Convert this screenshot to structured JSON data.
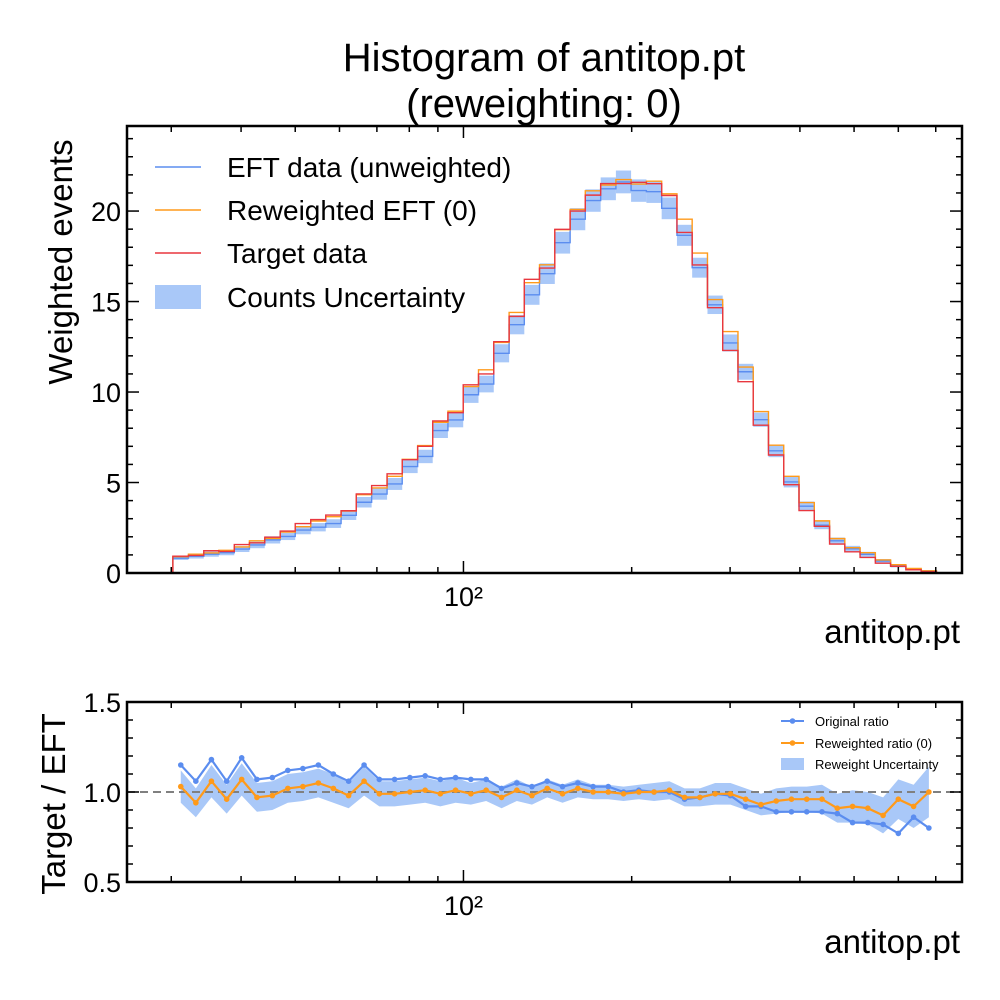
{
  "chart_data": [
    {
      "type": "line",
      "panel": "main",
      "title": "Histogram of antitop.pt",
      "subtitle": "(reweighting: 0)",
      "xlabel": "antitop.pt",
      "ylabel": "Weighted events",
      "xscale": "log",
      "xlim": [
        25,
        780
      ],
      "ylim": [
        0,
        24.7
      ],
      "xticks": [
        {
          "value": 100,
          "label": "10²"
        }
      ],
      "yticks": [
        0,
        5,
        10,
        15,
        20
      ],
      "legend_position": "upper-left",
      "bin_edges": [
        30.2,
        32.2,
        34.3,
        36.5,
        38.9,
        41.4,
        44.1,
        47.0,
        50.0,
        53.3,
        56.7,
        60.4,
        64.3,
        68.5,
        73.0,
        77.7,
        82.8,
        88.1,
        93.8,
        99.9,
        106.4,
        113.3,
        120.7,
        128.5,
        136.8,
        145.7,
        155.2,
        165.2,
        176.0,
        187.4,
        199.5,
        212.5,
        226.3,
        241.0,
        256.6,
        273.3,
        291.0,
        309.9,
        330.0,
        351.4,
        374.2,
        398.5,
        424.4,
        452.0,
        481.3,
        512.5,
        545.8,
        581.2,
        619.0,
        659.2,
        702.0
      ],
      "series": [
        {
          "name": "EFT data (unweighted)",
          "color": "#5b8def",
          "values": [
            0.82,
            0.92,
            1.04,
            1.12,
            1.32,
            1.55,
            1.83,
            2.02,
            2.37,
            2.53,
            2.73,
            3.19,
            3.91,
            4.36,
            4.92,
            5.88,
            6.44,
            7.87,
            8.46,
            9.85,
            10.44,
            12.14,
            13.72,
            15.37,
            16.54,
            18.25,
            19.55,
            20.58,
            21.23,
            21.61,
            21.13,
            21.07,
            20.15,
            18.66,
            16.87,
            14.82,
            12.71,
            11.12,
            8.47,
            6.75,
            5.03,
            3.69,
            2.64,
            1.78,
            1.34,
            1.03,
            0.66,
            0.4,
            0.21,
            0.11
          ]
        },
        {
          "name": "Reweighted EFT (0)",
          "color": "#ff9a1a",
          "values": [
            0.9,
            1.04,
            1.11,
            1.25,
            1.44,
            1.78,
            1.91,
            2.26,
            2.56,
            2.87,
            3.11,
            3.42,
            4.33,
            4.7,
            5.34,
            6.28,
            7.04,
            8.33,
            8.94,
            10.3,
            11.23,
            12.74,
            14.4,
            16.04,
            17.03,
            18.97,
            20.09,
            21.12,
            21.44,
            21.74,
            21.49,
            21.65,
            20.95,
            19.55,
            17.68,
            15.11,
            13.34,
            11.38,
            8.92,
            7.06,
            5.34,
            3.89,
            2.88,
            1.9,
            1.4,
            1.12,
            0.72,
            0.46,
            0.25,
            0.12
          ]
        },
        {
          "name": "Target data",
          "color": "#e8373f",
          "values": [
            0.93,
            0.97,
            1.23,
            1.19,
            1.57,
            1.67,
            1.98,
            2.32,
            2.73,
            2.95,
            3.2,
            3.44,
            4.37,
            4.83,
            5.48,
            6.26,
            7.0,
            8.4,
            8.86,
            10.4,
            11.0,
            12.78,
            14.18,
            16.23,
            16.85,
            18.99,
            20.0,
            20.88,
            21.52,
            21.52,
            21.59,
            21.51,
            20.86,
            18.82,
            17.02,
            14.66,
            12.3,
            10.57,
            8.17,
            6.52,
            4.88,
            3.45,
            2.58,
            1.6,
            1.17,
            0.86,
            0.54,
            0.37,
            0.18,
            0.08
          ]
        },
        {
          "name": "Counts Uncertainty",
          "color": "#a9c8f8",
          "type": "band",
          "lower": [
            0.72,
            0.8,
            0.9,
            0.98,
            1.16,
            1.37,
            1.63,
            1.82,
            2.14,
            2.3,
            2.49,
            2.93,
            3.62,
            4.05,
            4.59,
            5.52,
            6.07,
            7.46,
            8.05,
            9.4,
            9.98,
            11.64,
            13.19,
            14.82,
            15.97,
            17.65,
            18.94,
            19.96,
            20.6,
            20.98,
            20.51,
            20.45,
            19.55,
            18.08,
            16.32,
            14.31,
            12.24,
            10.68,
            8.08,
            6.4,
            4.73,
            3.43,
            2.42,
            1.6,
            1.18,
            0.89,
            0.55,
            0.31,
            0.15,
            0.06
          ],
          "upper": [
            0.92,
            1.04,
            1.18,
            1.26,
            1.48,
            1.73,
            2.03,
            2.22,
            2.6,
            2.76,
            2.97,
            3.45,
            4.2,
            4.67,
            5.25,
            6.24,
            6.81,
            8.28,
            8.87,
            10.3,
            10.9,
            12.64,
            14.25,
            15.92,
            17.11,
            18.85,
            20.16,
            21.2,
            21.86,
            22.24,
            21.75,
            21.69,
            20.75,
            19.24,
            17.42,
            15.33,
            13.18,
            11.56,
            8.86,
            7.1,
            5.33,
            3.95,
            2.86,
            1.96,
            1.5,
            1.17,
            0.77,
            0.49,
            0.27,
            0.16
          ]
        }
      ]
    },
    {
      "type": "line",
      "panel": "ratio",
      "xlabel": "antitop.pt",
      "ylabel": "Target / EFT",
      "xscale": "log",
      "xlim": [
        25,
        780
      ],
      "ylim": [
        0.5,
        1.5
      ],
      "xticks": [
        {
          "value": 100,
          "label": "10²"
        }
      ],
      "yticks": [
        {
          "value": 0.5,
          "label": "0.5"
        },
        {
          "value": 1.0,
          "label": "1.0"
        },
        {
          "value": 1.5,
          "label": "1.5"
        }
      ],
      "reference_line": 1.0,
      "legend_position": "upper-right",
      "x": [
        31.2,
        33.2,
        35.4,
        37.7,
        40.1,
        42.7,
        45.5,
        48.5,
        51.6,
        55.0,
        58.5,
        62.3,
        66.4,
        70.7,
        75.3,
        80.2,
        85.4,
        90.9,
        96.8,
        103.1,
        109.8,
        117.0,
        124.6,
        132.6,
        141.2,
        150.4,
        160.2,
        170.6,
        181.6,
        193.4,
        206.0,
        219.3,
        233.6,
        248.7,
        264.9,
        282.1,
        300.4,
        319.9,
        340.7,
        362.8,
        386.3,
        411.4,
        438.1,
        466.6,
        496.9,
        529.1,
        563.5,
        600.0,
        639.0,
        680.5
      ],
      "series": [
        {
          "name": "Original ratio",
          "color": "#5b8def",
          "values": [
            1.15,
            1.06,
            1.18,
            1.06,
            1.19,
            1.07,
            1.08,
            1.12,
            1.13,
            1.15,
            1.1,
            1.06,
            1.15,
            1.07,
            1.07,
            1.08,
            1.09,
            1.07,
            1.08,
            1.07,
            1.07,
            1.02,
            1.05,
            1.03,
            1.06,
            1.03,
            1.05,
            1.03,
            1.03,
            1.0,
            1.01,
            1.0,
            1.0,
            0.96,
            0.97,
            0.99,
            0.98,
            0.92,
            0.92,
            0.89,
            0.89,
            0.89,
            0.89,
            0.88,
            0.83,
            0.83,
            0.82,
            0.77,
            0.86,
            0.8
          ]
        },
        {
          "name": "Reweighted ratio (0)",
          "color": "#ff9a1a",
          "values": [
            1.03,
            0.94,
            1.06,
            0.96,
            1.07,
            0.97,
            0.98,
            1.02,
            1.03,
            1.05,
            1.02,
            0.98,
            1.06,
            0.99,
            0.99,
            1.0,
            1.01,
            0.99,
            1.01,
            0.99,
            1.01,
            0.97,
            1.01,
            0.98,
            1.02,
            0.99,
            1.02,
            1.0,
            1.0,
            0.99,
            1.0,
            1.0,
            1.01,
            0.97,
            0.97,
            0.99,
            0.99,
            0.96,
            0.93,
            0.95,
            0.96,
            0.96,
            0.96,
            0.91,
            0.92,
            0.91,
            0.87,
            0.96,
            0.92,
            1.0
          ]
        },
        {
          "name": "Reweight Uncertainty",
          "color": "#a9c8f8",
          "type": "band",
          "lower": [
            0.94,
            0.86,
            0.97,
            0.88,
            0.98,
            0.89,
            0.9,
            0.94,
            0.95,
            0.97,
            0.94,
            0.91,
            0.98,
            0.92,
            0.92,
            0.93,
            0.94,
            0.92,
            0.94,
            0.93,
            0.95,
            0.91,
            0.95,
            0.93,
            0.97,
            0.94,
            0.97,
            0.96,
            0.96,
            0.95,
            0.96,
            0.95,
            0.96,
            0.92,
            0.92,
            0.93,
            0.93,
            0.9,
            0.87,
            0.88,
            0.89,
            0.89,
            0.88,
            0.83,
            0.83,
            0.82,
            0.77,
            0.85,
            0.8,
            0.86
          ],
          "upper": [
            1.12,
            1.02,
            1.15,
            1.04,
            1.16,
            1.05,
            1.06,
            1.1,
            1.11,
            1.13,
            1.1,
            1.05,
            1.14,
            1.06,
            1.06,
            1.07,
            1.08,
            1.06,
            1.08,
            1.05,
            1.07,
            1.03,
            1.07,
            1.03,
            1.07,
            1.04,
            1.07,
            1.04,
            1.04,
            1.03,
            1.04,
            1.05,
            1.06,
            1.02,
            1.02,
            1.05,
            1.05,
            1.02,
            0.99,
            1.02,
            1.03,
            1.03,
            1.04,
            0.99,
            1.01,
            1.0,
            0.97,
            1.07,
            1.04,
            1.14
          ]
        }
      ]
    }
  ]
}
